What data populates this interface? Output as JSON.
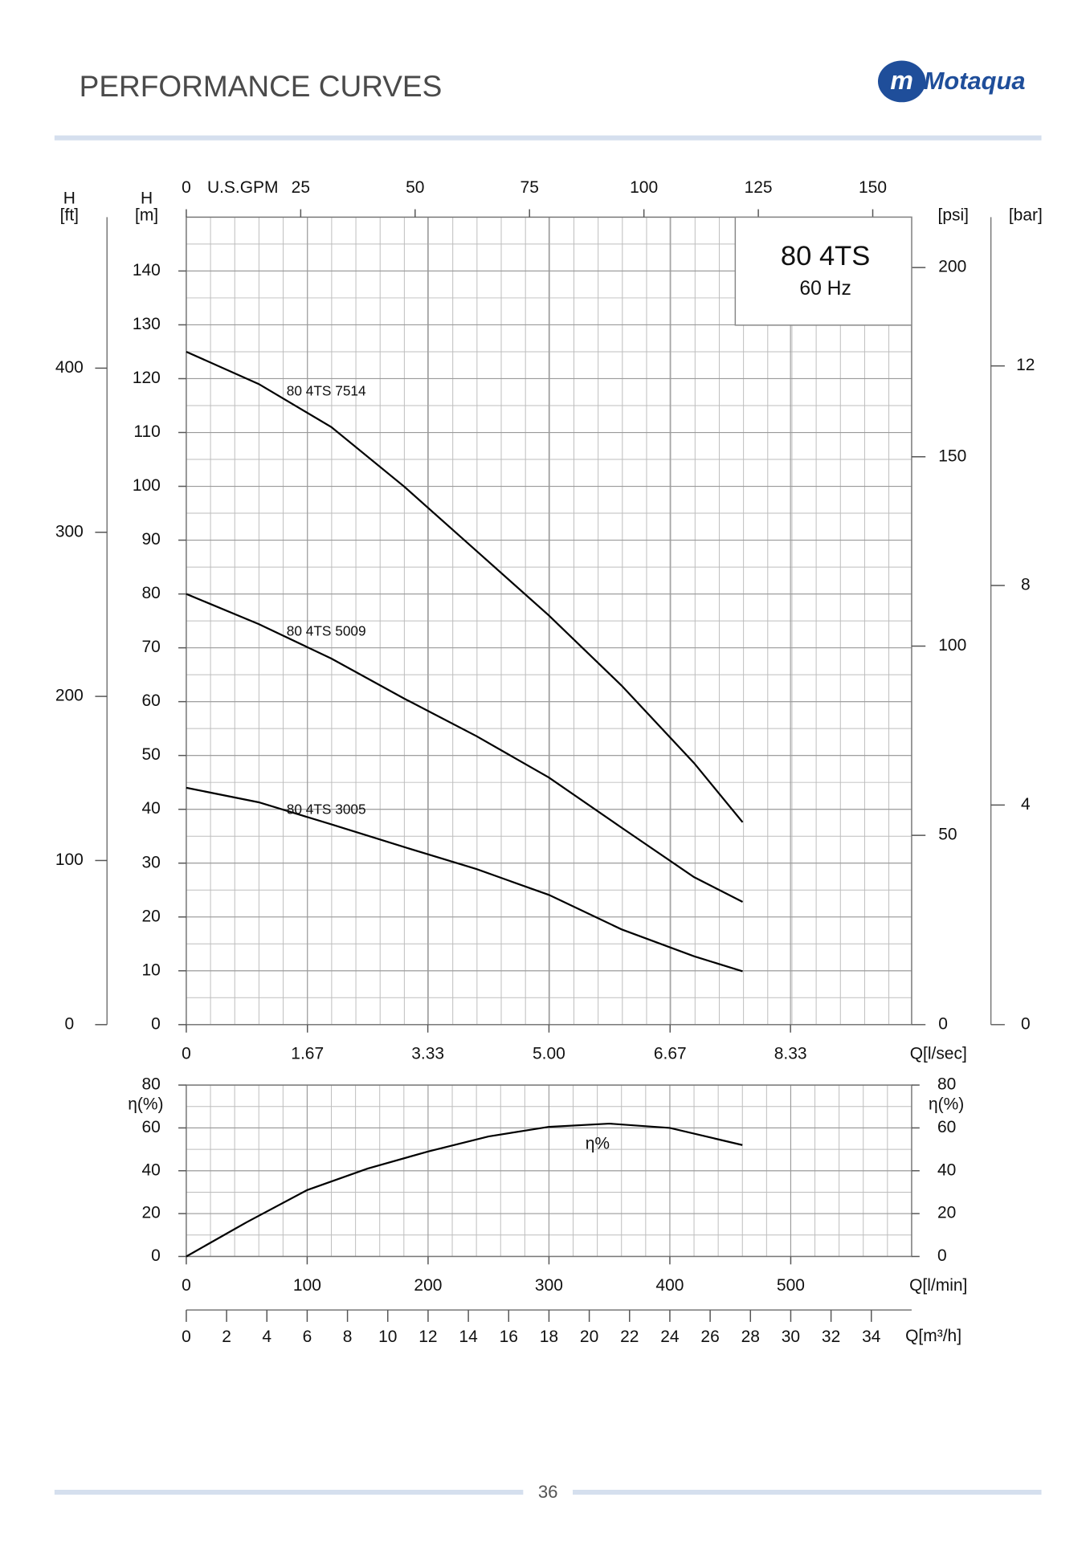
{
  "header": {
    "title": "PERFORMANCE CURVES",
    "logo": "Motaqua"
  },
  "footer": {
    "page": "36"
  },
  "chart_data": [
    {
      "type": "line",
      "title": "80 4TS",
      "subtitle": "60 Hz",
      "x": [
        0,
        1,
        2,
        3,
        4,
        5,
        6,
        7,
        7.67
      ],
      "xlim": [
        0,
        10
      ],
      "xticks": [
        0,
        1.67,
        3.33,
        {
          "value": 5,
          "label": "5.00"
        },
        6.67,
        8.33
      ],
      "xlabel": "Q[l/sec]",
      "x2lim": [
        0,
        158.5
      ],
      "x2ticks": [
        0,
        25,
        50,
        75,
        100,
        125,
        150
      ],
      "x2label": "U.S.GPM",
      "ylim": [
        0,
        150
      ],
      "yticks": [
        0,
        10,
        20,
        30,
        40,
        50,
        60,
        70,
        80,
        90,
        100,
        110,
        120,
        130,
        140
      ],
      "ylabel": "H",
      "yunit": "[m]",
      "extra_axes": [
        {
          "side": "left",
          "label": "H",
          "unit": "[ft]",
          "lim": [
            0,
            492
          ],
          "ticks": [
            0,
            100,
            200,
            300,
            400
          ]
        },
        {
          "side": "right",
          "unit": "[psi]",
          "lim": [
            0,
            213.3
          ],
          "ticks": [
            0,
            50,
            100,
            150,
            200
          ]
        },
        {
          "side": "right",
          "unit": "[bar]",
          "lim": [
            0,
            14.71
          ],
          "ticks": [
            0,
            4,
            8,
            12
          ]
        }
      ],
      "grid": true,
      "grid_subdivisions": [
        5,
        2
      ],
      "series": [
        {
          "name": "80 4TS 7514",
          "color": "#000000",
          "values": [
            125,
            119,
            111,
            100,
            88,
            76,
            63,
            48.6,
            37.6
          ]
        },
        {
          "name": "80 4TS 5009",
          "color": "#000000",
          "values": [
            80,
            74.4,
            68,
            60.6,
            53.6,
            45.9,
            36.6,
            27.4,
            22.8
          ]
        },
        {
          "name": "80 4TS 3005",
          "color": "#000000",
          "values": [
            44,
            41.3,
            37.2,
            33,
            28.9,
            24.1,
            17.7,
            12.7,
            9.9
          ]
        }
      ]
    },
    {
      "type": "line",
      "x": [
        0,
        50,
        100,
        150,
        200,
        250,
        300,
        350,
        400,
        460
      ],
      "xlim": [
        0,
        600
      ],
      "xticks": [
        0,
        100,
        200,
        300,
        400,
        500
      ],
      "xlabel": "Q[l/min]",
      "x2lim": [
        0,
        36
      ],
      "x2ticks": [
        0,
        2,
        4,
        6,
        8,
        10,
        12,
        14,
        16,
        18,
        20,
        22,
        24,
        26,
        28,
        30,
        32,
        34
      ],
      "x2label": "Q[m³/h]",
      "ylim": [
        0,
        80
      ],
      "yticks": [
        0,
        20,
        40,
        60,
        80
      ],
      "ylabel": "η(%)",
      "grid": true,
      "grid_subdivisions": [
        5,
        2
      ],
      "series": [
        {
          "name": "η%",
          "color": "#000000",
          "values": [
            0,
            16,
            31,
            41,
            49,
            56,
            60.5,
            62,
            60,
            52
          ]
        }
      ]
    }
  ]
}
